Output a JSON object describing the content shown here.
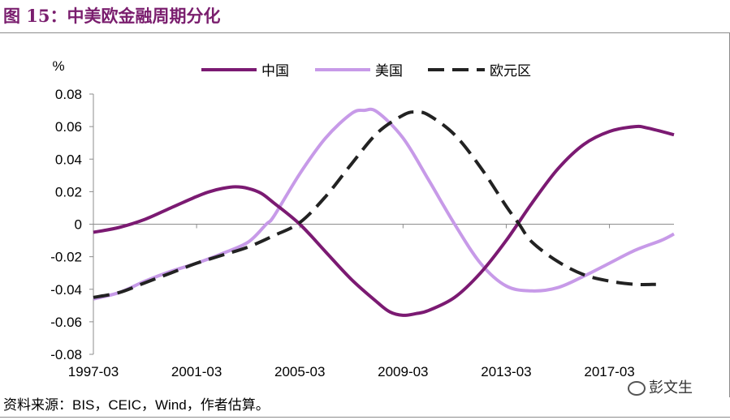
{
  "title": "图 15：中美欧金融周期分化",
  "source": "资料来源：BIS，CEIC，Wind，作者估算。",
  "watermark": "彭文生",
  "chart_data": {
    "type": "line",
    "unit_label": "%",
    "ylim": [
      -0.08,
      0.08
    ],
    "yticks": [
      0.08,
      0.06,
      0.04,
      0.02,
      0,
      -0.02,
      -0.04,
      -0.06,
      -0.08
    ],
    "ytick_labels": [
      "0.08",
      "0.06",
      "0.04",
      "0.02",
      "0",
      "-0.02",
      "-0.04",
      "-0.06",
      "-0.08"
    ],
    "xlim": [
      1997.0,
      2019.5
    ],
    "xticks": [
      1997.0,
      2001.0,
      2005.0,
      2009.0,
      2013.0,
      2017.0
    ],
    "xtick_labels": [
      "1997-03",
      "2001-03",
      "2005-03",
      "2009-03",
      "2013-03",
      "2017-03"
    ],
    "legend_position": "top",
    "series": [
      {
        "name": "中国",
        "color": "#7b1a72",
        "dash": "solid",
        "x": [
          1997.0,
          1998.0,
          1999.0,
          2000.0,
          2001.0,
          2001.5,
          2002.0,
          2002.5,
          2003.0,
          2003.5,
          2004.0,
          2005.0,
          2006.0,
          2007.0,
          2008.0,
          2008.5,
          2009.0,
          2009.5,
          2010.0,
          2011.0,
          2012.0,
          2013.0,
          2014.0,
          2015.0,
          2016.0,
          2017.0,
          2018.0,
          2018.5,
          2019.5
        ],
        "values": [
          -0.005,
          -0.002,
          0.003,
          0.01,
          0.017,
          0.02,
          0.022,
          0.023,
          0.022,
          0.019,
          0.013,
          0.0,
          -0.017,
          -0.034,
          -0.048,
          -0.054,
          -0.056,
          -0.055,
          -0.053,
          -0.045,
          -0.03,
          -0.01,
          0.013,
          0.034,
          0.049,
          0.057,
          0.06,
          0.059,
          0.055
        ]
      },
      {
        "name": "美国",
        "color": "#c79ae8",
        "dash": "solid",
        "x": [
          1997.0,
          1998.0,
          1999.0,
          2000.0,
          2001.0,
          2002.0,
          2003.0,
          2003.7,
          2004.0,
          2005.0,
          2006.0,
          2007.0,
          2007.5,
          2008.0,
          2009.0,
          2010.0,
          2011.0,
          2012.0,
          2013.0,
          2014.0,
          2015.0,
          2016.0,
          2017.0,
          2018.0,
          2019.0,
          2019.5
        ],
        "values": [
          -0.046,
          -0.042,
          -0.035,
          -0.029,
          -0.024,
          -0.018,
          -0.011,
          0.0,
          0.005,
          0.031,
          0.053,
          0.068,
          0.07,
          0.069,
          0.053,
          0.027,
          0.0,
          -0.024,
          -0.038,
          -0.041,
          -0.039,
          -0.032,
          -0.024,
          -0.016,
          -0.01,
          -0.006
        ]
      },
      {
        "name": "欧元区",
        "color": "#222222",
        "dash": "dashed",
        "x": [
          1997.0,
          1998.0,
          1999.0,
          2000.0,
          2001.0,
          2002.0,
          2003.0,
          2004.0,
          2005.0,
          2006.0,
          2007.0,
          2008.0,
          2009.0,
          2009.5,
          2010.0,
          2011.0,
          2012.0,
          2013.0,
          2013.5,
          2014.0,
          2015.0,
          2016.0,
          2017.0,
          2018.0,
          2018.8
        ],
        "values": [
          -0.045,
          -0.042,
          -0.036,
          -0.03,
          -0.024,
          -0.019,
          -0.014,
          -0.007,
          0.001,
          0.017,
          0.037,
          0.056,
          0.067,
          0.069,
          0.067,
          0.055,
          0.035,
          0.011,
          0.0,
          -0.011,
          -0.023,
          -0.031,
          -0.035,
          -0.037,
          -0.037
        ]
      }
    ]
  }
}
